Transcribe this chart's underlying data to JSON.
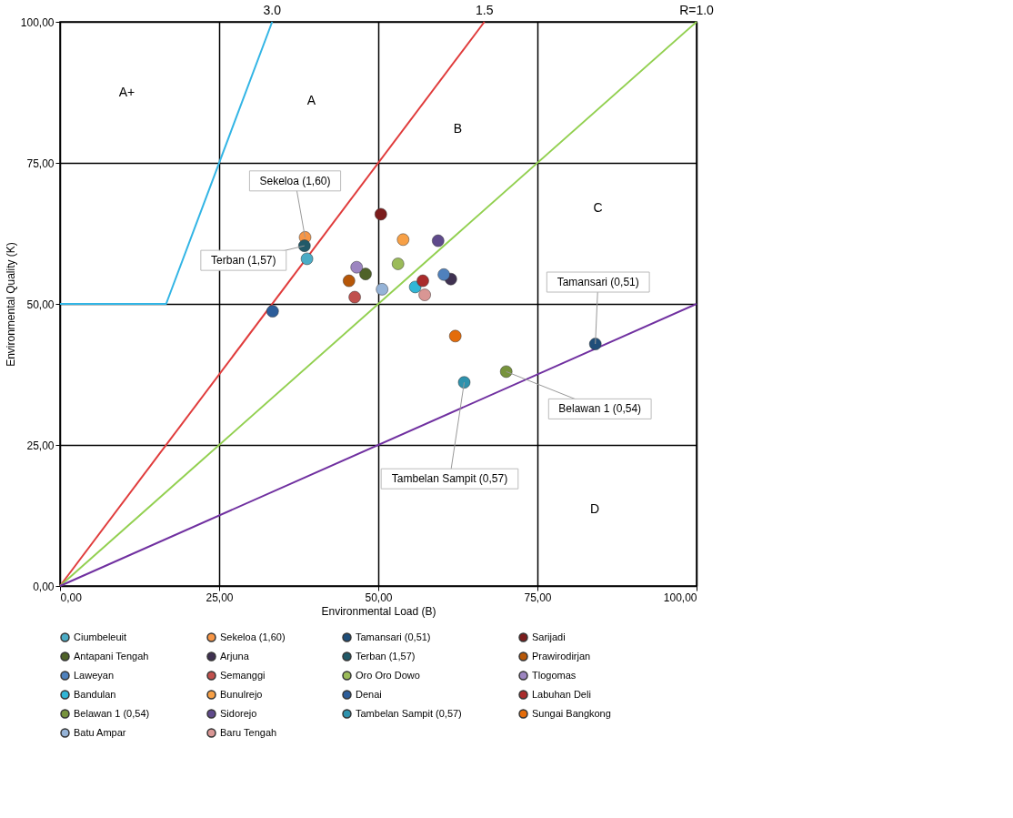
{
  "chart_data": {
    "type": "scatter",
    "xlabel": "Environmental Load (B)",
    "ylabel": "Environmental Quality (K)",
    "xlim": [
      0,
      100
    ],
    "ylim": [
      0,
      100
    ],
    "xticks": [
      {
        "value": 0,
        "label": "0,00"
      },
      {
        "value": 25,
        "label": "25,00"
      },
      {
        "value": 50,
        "label": "50,00"
      },
      {
        "value": 75,
        "label": "75,00"
      },
      {
        "value": 100,
        "label": "100,00"
      }
    ],
    "yticks": [
      {
        "value": 0,
        "label": "0,00"
      },
      {
        "value": 25,
        "label": "25,00"
      },
      {
        "value": 50,
        "label": "50,00"
      },
      {
        "value": 75,
        "label": "75,00"
      },
      {
        "value": 100,
        "label": "100,00"
      }
    ],
    "grid": true,
    "legend": "bottom",
    "marker": "circle",
    "series": [
      {
        "type": "line",
        "marker": "none",
        "name": "3.0",
        "color": "#33b5e5",
        "x": [
          0,
          16.67,
          33.33
        ],
        "values": [
          50,
          50,
          100
        ]
      },
      {
        "type": "line",
        "marker": "none",
        "name": "1.5",
        "color": "#e03c3c",
        "x": [
          0,
          66.67
        ],
        "values": [
          0,
          100
        ]
      },
      {
        "type": "line",
        "marker": "none",
        "name": "R=1.0",
        "color": "#92d050",
        "x": [
          0,
          100
        ],
        "values": [
          0,
          100
        ]
      },
      {
        "type": "line",
        "marker": "none",
        "color": "#7030a0",
        "x": [
          0,
          100
        ],
        "values": [
          0,
          50
        ]
      },
      {
        "name": "Ciumbeleuit",
        "color": "#4bacc6",
        "x": [
          38.8
        ],
        "values": [
          58.0
        ]
      },
      {
        "name": "Sekeloa (1,60)",
        "color": "#f79646",
        "x": [
          38.5
        ],
        "values": [
          61.8
        ]
      },
      {
        "name": "Tamansari (0,51)",
        "color": "#1f4e79",
        "x": [
          84.1
        ],
        "values": [
          42.9
        ]
      },
      {
        "name": "Sarijadi",
        "color": "#7b1c1c",
        "x": [
          50.4
        ],
        "values": [
          65.9
        ]
      },
      {
        "name": "Antapani Tengah",
        "color": "#4f6228",
        "x": [
          48.0
        ],
        "values": [
          55.3
        ]
      },
      {
        "name": "Arjuna",
        "color": "#3f3151",
        "x": [
          61.4
        ],
        "values": [
          54.4
        ]
      },
      {
        "name": "Terban (1,57)",
        "color": "#215968",
        "x": [
          38.4
        ],
        "values": [
          60.3
        ]
      },
      {
        "name": "Prawirodirjan",
        "color": "#b65708",
        "x": [
          45.4
        ],
        "values": [
          54.1
        ]
      },
      {
        "name": "Laweyan",
        "color": "#4f81bd",
        "x": [
          60.3
        ],
        "values": [
          55.2
        ]
      },
      {
        "name": "Semanggi",
        "color": "#c0504d",
        "x": [
          46.3
        ],
        "values": [
          51.2
        ]
      },
      {
        "name": "Oro Oro Dowo",
        "color": "#9bbb59",
        "x": [
          53.1
        ],
        "values": [
          57.1
        ]
      },
      {
        "name": "Tlogomas",
        "color": "#9c85c0",
        "x": [
          46.6
        ],
        "values": [
          56.5
        ]
      },
      {
        "name": "Bandulan",
        "color": "#31b6d6",
        "x": [
          55.8
        ],
        "values": [
          53.0
        ]
      },
      {
        "name": "Bunulrejo",
        "color": "#f7a046",
        "x": [
          53.9
        ],
        "values": [
          61.4
        ]
      },
      {
        "name": "Denai",
        "color": "#2c5d9a",
        "x": [
          33.4
        ],
        "values": [
          48.7
        ]
      },
      {
        "name": "Labuhan Deli",
        "color": "#a92b2b",
        "x": [
          57.0
        ],
        "values": [
          54.1
        ]
      },
      {
        "name": "Belawan 1 (0,54)",
        "color": "#77933c",
        "x": [
          70.1
        ],
        "values": [
          38.0
        ]
      },
      {
        "name": "Sidorejo",
        "color": "#5f4a8b",
        "x": [
          59.4
        ],
        "values": [
          61.2
        ]
      },
      {
        "name": "Tambelan Sampit (0,57)",
        "color": "#2e92ad",
        "x": [
          63.5
        ],
        "values": [
          36.1
        ]
      },
      {
        "name": "Sungai Bangkong",
        "color": "#e46c0a",
        "x": [
          62.1
        ],
        "values": [
          44.3
        ]
      },
      {
        "name": "Batu Ampar",
        "color": "#95b3d7",
        "x": [
          50.6
        ],
        "values": [
          52.6
        ]
      },
      {
        "name": "Baru Tengah",
        "color": "#d99694",
        "x": [
          57.3
        ],
        "values": [
          51.6
        ]
      }
    ],
    "annotations": [
      "A+",
      "A",
      "B",
      "C",
      "D",
      {
        "text": "Sekeloa (1,60)",
        "x": 38.5,
        "y": 61.8
      },
      {
        "text": "Terban (1,57)",
        "x": 38.4,
        "y": 60.3
      },
      {
        "text": "Tamansari (0,51)",
        "x": 84.1,
        "y": 42.9
      },
      {
        "text": "Belawan 1 (0,54)",
        "x": 70.1,
        "y": 38.0
      },
      {
        "text": "Tambelan Sampit (0,57)",
        "x": 63.5,
        "y": 36.1
      }
    ]
  }
}
